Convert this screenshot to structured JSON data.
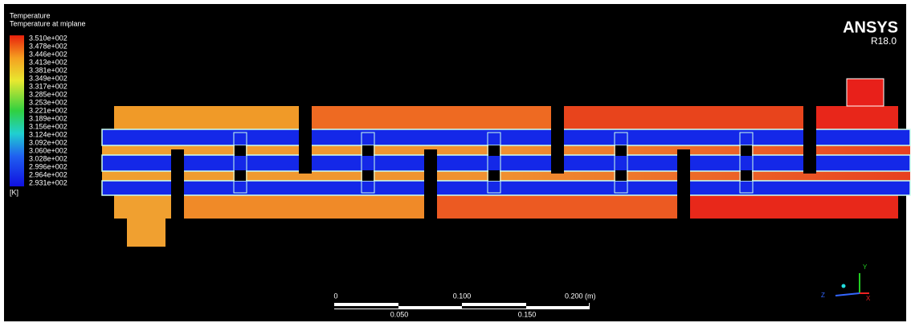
{
  "legend": {
    "title": "Temperature",
    "subtitle": "Temperature at miplane",
    "labels": [
      "3.510e+002",
      "3.478e+002",
      "3.446e+002",
      "3.413e+002",
      "3.381e+002",
      "3.349e+002",
      "3.317e+002",
      "3.285e+002",
      "3.253e+002",
      "3.221e+002",
      "3.189e+002",
      "3.156e+002",
      "3.124e+002",
      "3.092e+002",
      "3.060e+002",
      "3.028e+002",
      "2.996e+002",
      "2.964e+002",
      "2.931e+002"
    ],
    "unit": "[K]"
  },
  "logo": {
    "brand": "ANSYS",
    "version": "R18.0"
  },
  "scale_bar": {
    "top_labels": [
      "0",
      "0.100",
      "0.200 (m)"
    ],
    "bottom_labels": [
      "0.050",
      "0.150"
    ]
  },
  "triad": {
    "y": "Y",
    "x": "X",
    "z": "Z"
  }
}
